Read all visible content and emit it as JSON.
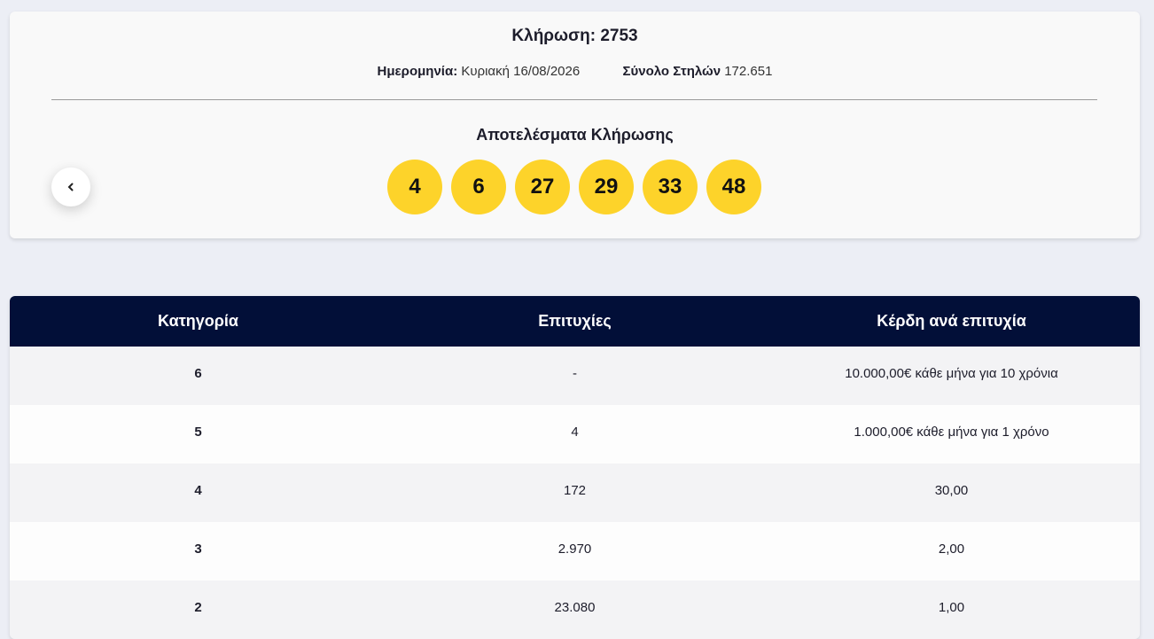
{
  "draw": {
    "title": "Κλήρωση: 2753",
    "date_label": "Ημερομηνία:",
    "date_value": "Κυριακή 16/08/2026",
    "columns_label": "Σύνολο Στηλών",
    "columns_value": "172.651",
    "results_title": "Αποτελέσματα Κλήρωσης",
    "balls": [
      4,
      6,
      27,
      29,
      33,
      48
    ]
  },
  "table": {
    "headers": [
      "Κατηγορία",
      "Επιτυχίες",
      "Κέρδη ανά επιτυχία"
    ],
    "rows": [
      [
        "6",
        "-",
        "10.000,00€ κάθε μήνα για 10 χρόνια"
      ],
      [
        "5",
        "4",
        "1.000,00€ κάθε μήνα για 1 χρόνο"
      ],
      [
        "4",
        "172",
        "30,00"
      ],
      [
        "3",
        "2.970",
        "2,00"
      ],
      [
        "2",
        "23.080",
        "1,00"
      ]
    ]
  }
}
